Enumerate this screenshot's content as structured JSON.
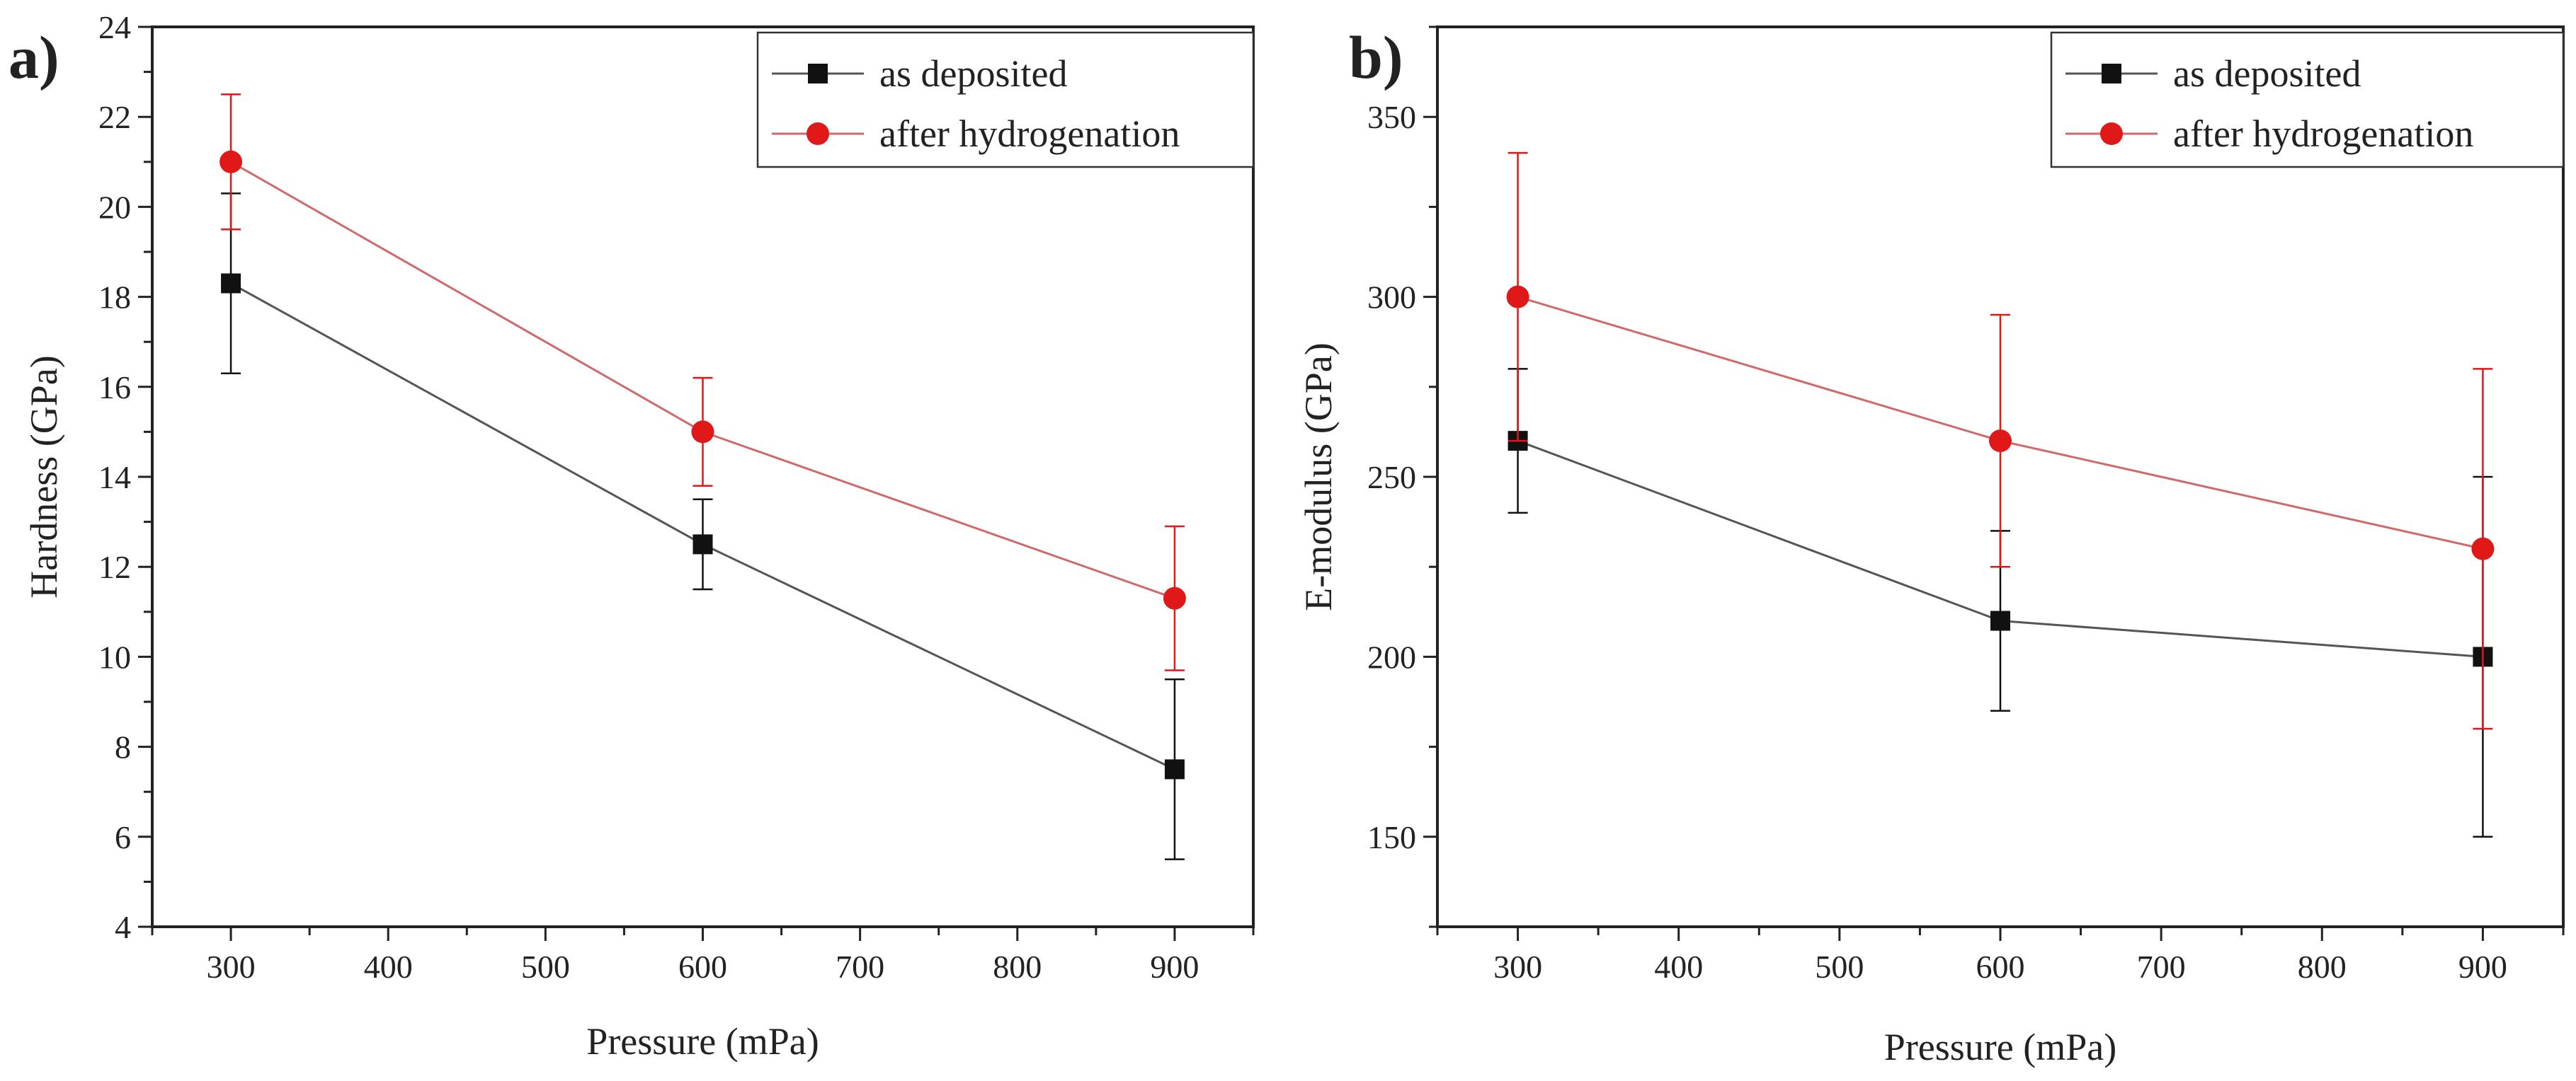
{
  "chart_data": [
    {
      "type": "line",
      "panel_label": "a)",
      "title": "",
      "xlabel": "Pressure (mPa)",
      "ylabel": "Hardness (GPa)",
      "xlim": [
        250,
        950
      ],
      "ylim": [
        4,
        24
      ],
      "xticks": [
        300,
        400,
        500,
        600,
        700,
        800,
        900
      ],
      "yticks": [
        4,
        6,
        8,
        10,
        12,
        14,
        16,
        18,
        20,
        22,
        24
      ],
      "x": [
        300,
        600,
        900
      ],
      "legend_position": "top-right",
      "series": [
        {
          "name": "as deposited",
          "color": "#111111",
          "line_color": "#555555",
          "marker": "square",
          "values": [
            18.3,
            12.5,
            7.5
          ],
          "errors": [
            2.0,
            1.0,
            2.0
          ]
        },
        {
          "name": "after hydrogenation",
          "color": "#e01818",
          "line_color": "#d06a6a",
          "marker": "circle",
          "values": [
            21.0,
            15.0,
            11.3
          ],
          "errors": [
            1.5,
            1.2,
            1.6
          ]
        }
      ]
    },
    {
      "type": "line",
      "panel_label": "b)",
      "title": "",
      "xlabel": "Pressure (mPa)",
      "ylabel": "E-modulus (GPa)",
      "xlim": [
        250,
        950
      ],
      "ylim": [
        125,
        375
      ],
      "xticks": [
        300,
        400,
        500,
        600,
        700,
        800,
        900
      ],
      "yticks": [
        150,
        200,
        250,
        300,
        350
      ],
      "x": [
        300,
        600,
        900
      ],
      "legend_position": "top-right",
      "series": [
        {
          "name": "as deposited",
          "color": "#111111",
          "line_color": "#555555",
          "marker": "square",
          "values": [
            260,
            210,
            200
          ],
          "errors": [
            20,
            25,
            50
          ]
        },
        {
          "name": "after hydrogenation",
          "color": "#e01818",
          "line_color": "#d06a6a",
          "marker": "circle",
          "values": [
            300,
            260,
            230
          ],
          "errors": [
            40,
            35,
            50
          ]
        }
      ]
    }
  ]
}
